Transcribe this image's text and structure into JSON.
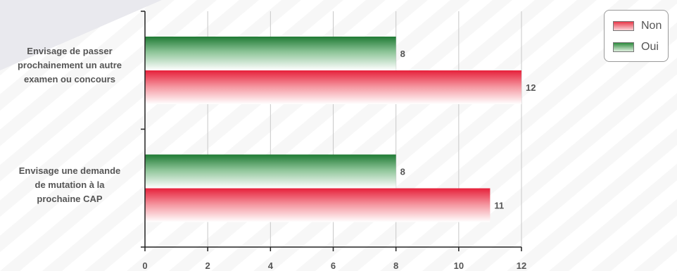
{
  "chart_data": {
    "type": "bar",
    "orientation": "horizontal",
    "categories": [
      "Envisage de passer prochainement un autre examen ou concours",
      "Envisage une demande de mutation à la prochaine CAP"
    ],
    "category_label_lines": [
      [
        "Envisage de passer",
        "prochainement un autre",
        "examen ou concours"
      ],
      [
        "Envisage une demande",
        "de mutation à la",
        "prochaine CAP"
      ]
    ],
    "series": [
      {
        "name": "Oui",
        "values": [
          8,
          8
        ],
        "color": "#2e8b3e"
      },
      {
        "name": "Non",
        "values": [
          12,
          11
        ],
        "color": "#e8394a"
      }
    ],
    "x_ticks": [
      "0",
      "2",
      "4",
      "6",
      "8",
      "10",
      "12"
    ],
    "xlim": [
      0,
      12
    ],
    "grid": true,
    "legend": {
      "position": "top-right",
      "entries": [
        {
          "label": "Non",
          "color": "#e8394a"
        },
        {
          "label": "Oui",
          "color": "#2e8b3e"
        }
      ]
    },
    "title": "",
    "xlabel": "",
    "ylabel": ""
  }
}
